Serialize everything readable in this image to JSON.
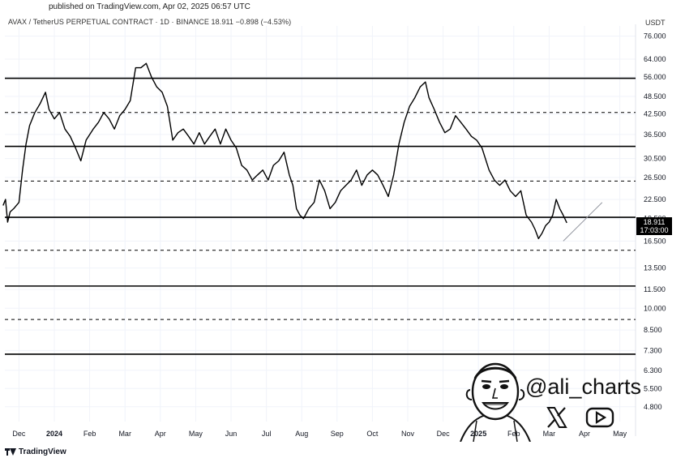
{
  "header": {
    "published": "published on TradingView.com, Apr 02, 2025 06:57 UTC",
    "legend": "AVAX / TetherUS PERPETUAL CONTRACT · 1D · BINANCE  18.911  −0.898 (−4.53%)",
    "currency": "USDT"
  },
  "price_tag": {
    "price": "18.911",
    "countdown": "17:03:00"
  },
  "watermark": {
    "handle": "@ali_charts"
  },
  "footer": {
    "brand": "TradingView"
  },
  "colors": {
    "line": "#000000",
    "grid": "#f0f3fa",
    "trend": "#9598a1"
  },
  "chart_data": {
    "type": "line",
    "title": "",
    "xlabel": "",
    "ylabel": "",
    "y_scale": "log",
    "ylim": [
      4.3,
      80
    ],
    "x_ticks": [
      {
        "label": "Dec",
        "t": -1
      },
      {
        "label": "2024",
        "t": 0,
        "bold": true
      },
      {
        "label": "Feb",
        "t": 1
      },
      {
        "label": "Mar",
        "t": 2
      },
      {
        "label": "Apr",
        "t": 3
      },
      {
        "label": "May",
        "t": 4
      },
      {
        "label": "Jun",
        "t": 5
      },
      {
        "label": "Jul",
        "t": 6
      },
      {
        "label": "Aug",
        "t": 7
      },
      {
        "label": "Sep",
        "t": 8
      },
      {
        "label": "Oct",
        "t": 9
      },
      {
        "label": "Nov",
        "t": 10
      },
      {
        "label": "Dec",
        "t": 11
      },
      {
        "label": "2025",
        "t": 12,
        "bold": true
      },
      {
        "label": "Feb",
        "t": 13
      },
      {
        "label": "Mar",
        "t": 14
      },
      {
        "label": "Apr",
        "t": 15
      },
      {
        "label": "May",
        "t": 16
      }
    ],
    "y_ticks": [
      "76.000",
      "64.000",
      "56.000",
      "48.500",
      "42.500",
      "36.500",
      "30.500",
      "26.500",
      "22.500",
      "19.500",
      "16.500",
      "13.500",
      "11.500",
      "10.000",
      "8.500",
      "7.300",
      "6.300",
      "5.500",
      "4.800"
    ],
    "horizontal_levels": [
      {
        "price": 55.5,
        "style": "solid"
      },
      {
        "price": 43.0,
        "style": "dashed"
      },
      {
        "price": 33.4,
        "style": "solid"
      },
      {
        "price": 25.8,
        "style": "dashed"
      },
      {
        "price": 19.7,
        "style": "solid"
      },
      {
        "price": 15.4,
        "style": "dashed"
      },
      {
        "price": 11.8,
        "style": "solid"
      },
      {
        "price": 9.2,
        "style": "dashed"
      },
      {
        "price": 7.1,
        "style": "solid"
      }
    ],
    "trendline": {
      "points": [
        [
          14.4,
          16.5
        ],
        [
          15.5,
          22.0
        ]
      ]
    },
    "series": [
      {
        "values": [
          [
            -1.45,
            21.5
          ],
          [
            -1.38,
            22.5
          ],
          [
            -1.32,
            19.0
          ],
          [
            -1.25,
            20.5
          ],
          [
            -1.15,
            21.0
          ],
          [
            -1.0,
            22.0
          ],
          [
            -0.9,
            28.0
          ],
          [
            -0.8,
            34.0
          ],
          [
            -0.7,
            39.0
          ],
          [
            -0.55,
            43.0
          ],
          [
            -0.4,
            46.0
          ],
          [
            -0.25,
            50.0
          ],
          [
            -0.15,
            44.0
          ],
          [
            0.0,
            41.0
          ],
          [
            0.15,
            43.0
          ],
          [
            0.3,
            38.0
          ],
          [
            0.45,
            36.0
          ],
          [
            0.6,
            33.0
          ],
          [
            0.75,
            30.0
          ],
          [
            0.9,
            35.0
          ],
          [
            1.1,
            38.0
          ],
          [
            1.25,
            40.0
          ],
          [
            1.4,
            43.0
          ],
          [
            1.55,
            41.0
          ],
          [
            1.7,
            38.0
          ],
          [
            1.85,
            42.0
          ],
          [
            2.0,
            44.0
          ],
          [
            2.15,
            47.0
          ],
          [
            2.3,
            60.0
          ],
          [
            2.45,
            60.0
          ],
          [
            2.6,
            62.0
          ],
          [
            2.75,
            56.0
          ],
          [
            2.9,
            52.0
          ],
          [
            3.05,
            50.0
          ],
          [
            3.2,
            45.0
          ],
          [
            3.35,
            35.0
          ],
          [
            3.5,
            37.0
          ],
          [
            3.65,
            38.0
          ],
          [
            3.8,
            36.0
          ],
          [
            3.95,
            34.0
          ],
          [
            4.1,
            37.0
          ],
          [
            4.25,
            34.0
          ],
          [
            4.4,
            36.0
          ],
          [
            4.55,
            38.0
          ],
          [
            4.7,
            34.0
          ],
          [
            4.85,
            38.0
          ],
          [
            5.0,
            35.0
          ],
          [
            5.15,
            33.0
          ],
          [
            5.3,
            29.0
          ],
          [
            5.45,
            28.0
          ],
          [
            5.6,
            26.0
          ],
          [
            5.75,
            27.0
          ],
          [
            5.9,
            28.0
          ],
          [
            6.05,
            26.0
          ],
          [
            6.2,
            29.0
          ],
          [
            6.35,
            30.0
          ],
          [
            6.5,
            32.0
          ],
          [
            6.65,
            27.0
          ],
          [
            6.75,
            25.0
          ],
          [
            6.85,
            21.0
          ],
          [
            6.95,
            20.0
          ],
          [
            7.05,
            19.5
          ],
          [
            7.2,
            21.0
          ],
          [
            7.35,
            22.0
          ],
          [
            7.5,
            26.0
          ],
          [
            7.65,
            24.0
          ],
          [
            7.8,
            21.0
          ],
          [
            7.95,
            22.0
          ],
          [
            8.1,
            24.0
          ],
          [
            8.25,
            25.0
          ],
          [
            8.4,
            26.0
          ],
          [
            8.55,
            28.0
          ],
          [
            8.7,
            25.0
          ],
          [
            8.85,
            27.0
          ],
          [
            9.0,
            28.0
          ],
          [
            9.15,
            27.0
          ],
          [
            9.3,
            25.0
          ],
          [
            9.45,
            23.0
          ],
          [
            9.6,
            27.0
          ],
          [
            9.75,
            34.0
          ],
          [
            9.9,
            40.0
          ],
          [
            10.05,
            45.0
          ],
          [
            10.2,
            48.0
          ],
          [
            10.35,
            52.0
          ],
          [
            10.5,
            54.0
          ],
          [
            10.6,
            48.0
          ],
          [
            10.75,
            44.0
          ],
          [
            10.9,
            40.0
          ],
          [
            11.05,
            37.0
          ],
          [
            11.2,
            38.0
          ],
          [
            11.35,
            42.0
          ],
          [
            11.5,
            40.0
          ],
          [
            11.65,
            38.0
          ],
          [
            11.8,
            36.0
          ],
          [
            11.95,
            35.0
          ],
          [
            12.1,
            33.0
          ],
          [
            12.3,
            28.0
          ],
          [
            12.45,
            26.0
          ],
          [
            12.6,
            25.0
          ],
          [
            12.75,
            26.0
          ],
          [
            12.9,
            24.0
          ],
          [
            13.05,
            23.0
          ],
          [
            13.2,
            24.0
          ],
          [
            13.35,
            20.0
          ],
          [
            13.5,
            19.0
          ],
          [
            13.6,
            18.0
          ],
          [
            13.7,
            16.8
          ],
          [
            13.8,
            17.5
          ],
          [
            13.9,
            18.5
          ],
          [
            14.0,
            19.0
          ],
          [
            14.1,
            20.0
          ],
          [
            14.2,
            22.5
          ],
          [
            14.3,
            21.0
          ],
          [
            14.4,
            20.0
          ],
          [
            14.5,
            18.9
          ]
        ]
      }
    ]
  }
}
